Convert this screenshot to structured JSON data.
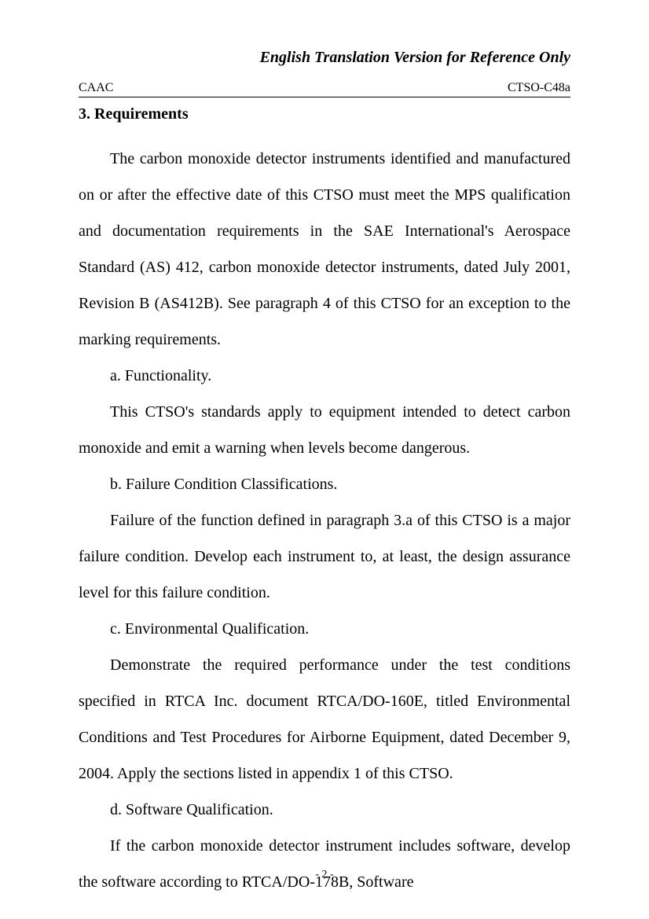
{
  "header": {
    "title": "English Translation Version for Reference Only",
    "left": "CAAC",
    "right": "CTSO-C48a"
  },
  "section": {
    "heading": "3. Requirements",
    "para1": "The carbon monoxide detector instruments identified and manufactured on or after the effective date of this CTSO must meet the MPS qualification and documentation requirements in the SAE International's Aerospace Standard (AS) 412, carbon monoxide detector instruments, dated July 2001, Revision B (AS412B). See paragraph 4 of this CTSO for an exception to the marking requirements.",
    "sub_a_label": "a. Functionality.",
    "sub_a_body": "This CTSO's standards apply to equipment intended to detect carbon monoxide and emit a warning when levels become dangerous.",
    "sub_b_label": "b. Failure Condition Classifications.",
    "sub_b_body": "Failure of the function defined in paragraph 3.a of this CTSO is a major failure condition. Develop each instrument to, at least, the design assurance level for this failure condition.",
    "sub_c_label": "c. Environmental Qualification.",
    "sub_c_body": "Demonstrate the required performance under the test conditions specified in RTCA Inc. document RTCA/DO-160E, titled Environmental Conditions and Test Procedures for Airborne Equipment, dated December 9, 2004. Apply the sections listed in appendix 1 of this CTSO.",
    "sub_d_label": "d. Software Qualification.",
    "sub_d_body": "If the carbon monoxide detector instrument includes software, develop the software according to RTCA/DO-178B, Software"
  },
  "footer": {
    "page_number": "- 2 -"
  }
}
